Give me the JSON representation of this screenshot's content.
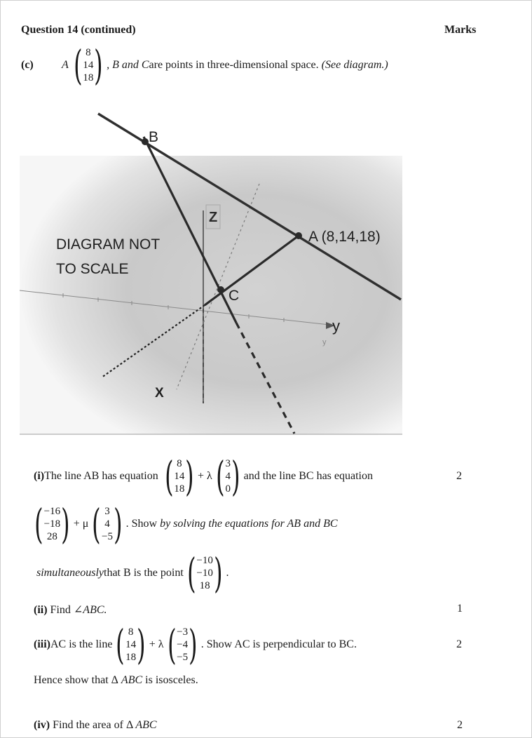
{
  "header": {
    "question": "Question 14 (continued)",
    "marks_label": "Marks"
  },
  "part_c": {
    "label": "(c)",
    "point_letter": "A",
    "a_vec": [
      "8",
      "14",
      "18"
    ],
    "intro_rest": ", B and C",
    "intro_tail": " are points in three-dimensional space. ",
    "see_diagram": "(See diagram.)"
  },
  "diagram": {
    "not_to_scale_1": "DIAGRAM NOT",
    "not_to_scale_2": "TO SCALE",
    "label_B": "B",
    "label_A": "A (8,14,18)",
    "label_C": "C",
    "axis_z": "Z",
    "axis_y": "y",
    "axis_x": "X",
    "axis_y_small": "y"
  },
  "part_i": {
    "label": "(i)",
    "text1": " The line AB has equation ",
    "ab_point": [
      "8",
      "14",
      "18"
    ],
    "plus_lambda": "+ λ",
    "ab_dir": [
      "3",
      "4",
      "0"
    ],
    "text2": " and the line BC has equation",
    "marks": "2",
    "bc_point": [
      "−16",
      "−18",
      "28"
    ],
    "plus_mu": "+ μ",
    "bc_dir": [
      "3",
      "4",
      "−5"
    ],
    "show_text": ". Show ",
    "show_italic": "by solving the equations for AB and BC",
    "simult_italic": "simultaneously",
    "simult_text": " that B is the point ",
    "b_point": [
      "−10",
      "−10",
      "18"
    ],
    "period": "."
  },
  "part_ii": {
    "label": "(ii)",
    "text": " Find ",
    "angle": "∠ABC.",
    "marks": "1"
  },
  "part_iii": {
    "label": "(iii)",
    "text1": " AC is the line ",
    "ac_point": [
      "8",
      "14",
      "18"
    ],
    "plus_lambda": "+ λ",
    "ac_dir": [
      "−3",
      "−4",
      "−5"
    ],
    "text2": ". Show AC is perpendicular to BC.",
    "marks": "2",
    "hence": "Hence show that Δ",
    "hence_it": " ABC",
    "hence_tail": " is isosceles."
  },
  "part_iv": {
    "label": "(iv)",
    "text": " Find the area of Δ ",
    "tri": "ABC",
    "marks": "2"
  }
}
